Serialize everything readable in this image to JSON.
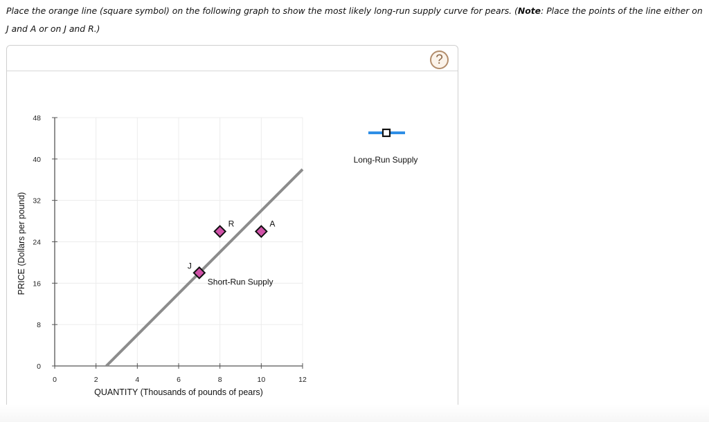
{
  "instructions": {
    "part1": "Place the orange line (square symbol) on the following graph to show the most likely long-run supply curve for pears. (",
    "note_label": "Note",
    "part2": ": Place the points of the line either on J and A or on J and R.)"
  },
  "panel": {
    "help_icon": "?",
    "help_icon_name": "question-mark-icon"
  },
  "palette": {
    "tool_label": "Long-Run Supply",
    "tool_line_color": "#2f8fe6",
    "tool_marker": "square"
  },
  "chart_data": {
    "type": "line",
    "title": "",
    "xlabel": "QUANTITY (Thousands of pounds of pears)",
    "ylabel": "PRICE (Dollars per pound)",
    "xlim": [
      0,
      12
    ],
    "ylim": [
      0,
      48
    ],
    "x_ticks": [
      "0",
      "2",
      "4",
      "6",
      "8",
      "10",
      "12"
    ],
    "y_ticks": [
      "0",
      "8",
      "16",
      "24",
      "32",
      "40",
      "48"
    ],
    "grid": true,
    "series": [
      {
        "name": "Short-Run Supply",
        "color": "#8c8c8c",
        "points": [
          [
            2.5,
            0
          ],
          [
            12,
            38
          ]
        ]
      }
    ],
    "points": [
      {
        "label": "J",
        "x": 7,
        "y": 18,
        "color": "#d052a8"
      },
      {
        "label": "R",
        "x": 8,
        "y": 26,
        "color": "#d052a8"
      },
      {
        "label": "A",
        "x": 10,
        "y": 26,
        "color": "#d052a8"
      }
    ],
    "annotations": [
      {
        "text": "Short-Run Supply",
        "x": 7.4,
        "y": 16
      }
    ],
    "legend": {
      "entries": [
        "Long-Run Supply"
      ],
      "position": "right"
    }
  }
}
